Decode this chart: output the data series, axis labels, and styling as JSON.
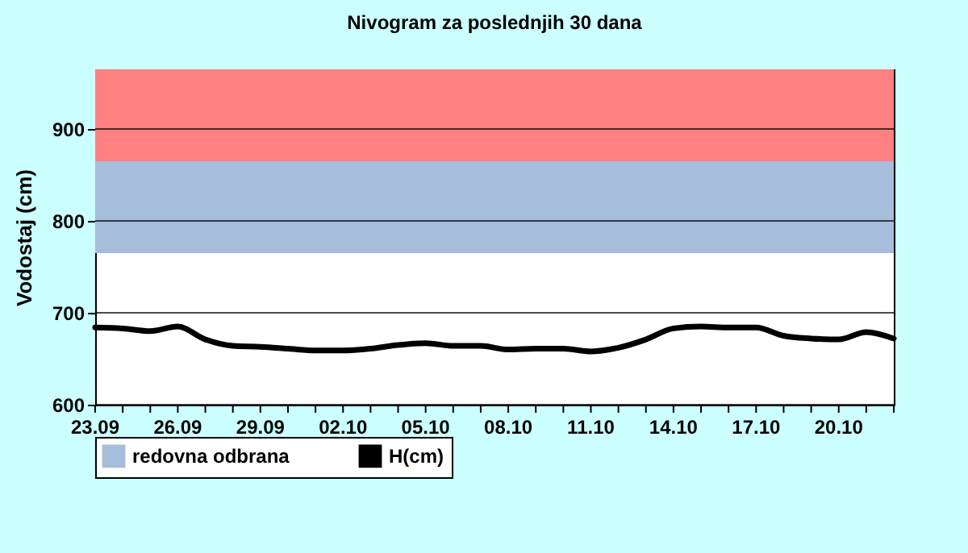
{
  "chart_data": {
    "type": "line",
    "title": "Nivogram za poslednjih 30 dana",
    "ylabel": "Vodostaj (cm)",
    "x": [
      "--09-23",
      "--09-24",
      "--09-25",
      "--09-26",
      "--09-27",
      "--09-28",
      "--09-29",
      "--09-30",
      "--10-01",
      "--10-02",
      "--10-03",
      "--10-04",
      "--10-05",
      "--10-06",
      "--10-07",
      "--10-08",
      "--10-09",
      "--10-10",
      "--10-11",
      "--10-12",
      "--10-13",
      "--10-14",
      "--10-15",
      "--10-16",
      "--10-17",
      "--10-18",
      "--10-19",
      "--10-20",
      "--10-21",
      "--10-22"
    ],
    "series": [
      {
        "name": "H(cm)",
        "color": "#000000",
        "values": [
          684,
          683,
          680,
          685,
          671,
          664,
          663,
          661,
          659,
          659,
          661,
          665,
          667,
          664,
          664,
          660,
          661,
          661,
          658,
          662,
          671,
          683,
          685,
          684,
          684,
          675,
          672,
          671,
          679,
          672
        ]
      }
    ],
    "xlim": [
      "--09-23",
      "--10-22"
    ],
    "xticks": [
      {
        "value": "--09-23",
        "label": "23.09"
      },
      {
        "value": "--09-24",
        "label": null
      },
      {
        "value": "--09-25",
        "label": null
      },
      {
        "value": "--09-26",
        "label": "26.09"
      },
      {
        "value": "--09-27",
        "label": null
      },
      {
        "value": "--09-28",
        "label": null
      },
      {
        "value": "--09-29",
        "label": "29.09"
      },
      {
        "value": "--09-30",
        "label": null
      },
      {
        "value": "--10-01",
        "label": null
      },
      {
        "value": "--10-02",
        "label": "02.10"
      },
      {
        "value": "--10-03",
        "label": null
      },
      {
        "value": "--10-04",
        "label": null
      },
      {
        "value": "--10-05",
        "label": "05.10"
      },
      {
        "value": "--10-06",
        "label": null
      },
      {
        "value": "--10-07",
        "label": null
      },
      {
        "value": "--10-08",
        "label": "08.10"
      },
      {
        "value": "--10-09",
        "label": null
      },
      {
        "value": "--10-10",
        "label": null
      },
      {
        "value": "--10-11",
        "label": "11.10"
      },
      {
        "value": "--10-12",
        "label": null
      },
      {
        "value": "--10-13",
        "label": null
      },
      {
        "value": "--10-14",
        "label": "14.10"
      },
      {
        "value": "--10-15",
        "label": null
      },
      {
        "value": "--10-16",
        "label": null
      },
      {
        "value": "--10-17",
        "label": "17.10"
      },
      {
        "value": "--10-18",
        "label": null
      },
      {
        "value": "--10-19",
        "label": null
      },
      {
        "value": "--10-20",
        "label": "20.10"
      },
      {
        "value": "--10-21",
        "label": null
      },
      {
        "value": "--10-22",
        "label": null
      }
    ],
    "ylim": [
      600,
      965
    ],
    "yticks": [
      600,
      700,
      800,
      900
    ],
    "bands": [
      {
        "axis": "y",
        "from": 765,
        "to": 865,
        "label": "redovna odbrana",
        "color": "#a6bddb"
      },
      {
        "axis": "y",
        "from": 865,
        "to": 965,
        "color": "#ff8080"
      }
    ],
    "grid": "y",
    "legend": "bottom",
    "marker": "none",
    "line_style": "solid"
  }
}
